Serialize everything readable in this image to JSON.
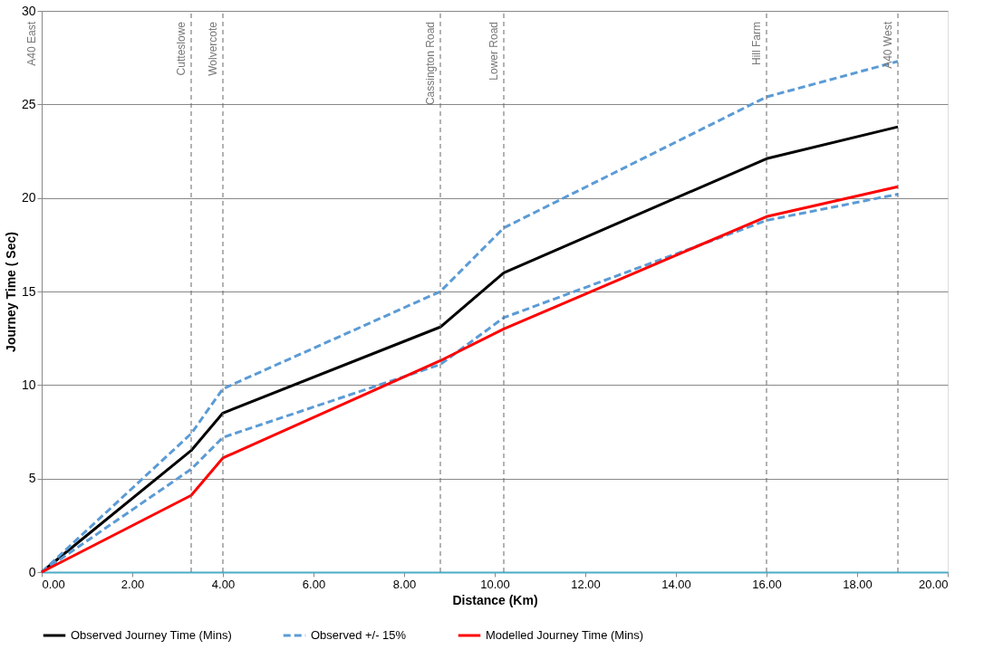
{
  "chart_data": {
    "type": "line",
    "xlabel": "Distance (Km)",
    "ylabel": "Journey Time ( Sec)",
    "xlim": [
      0,
      20
    ],
    "ylim": [
      0,
      30
    ],
    "xticks": [
      {
        "value": 0,
        "label": "0.00"
      },
      {
        "value": 2,
        "label": "2.00"
      },
      {
        "value": 4,
        "label": "4.00"
      },
      {
        "value": 6,
        "label": "6.00"
      },
      {
        "value": 8,
        "label": "8.00"
      },
      {
        "value": 10,
        "label": "10.00"
      },
      {
        "value": 12,
        "label": "12.00"
      },
      {
        "value": 14,
        "label": "14.00"
      },
      {
        "value": 16,
        "label": "16.00"
      },
      {
        "value": 18,
        "label": "18.00"
      },
      {
        "value": 20,
        "label": "20.00"
      }
    ],
    "yticks": [
      0,
      5,
      10,
      15,
      20,
      25,
      30
    ],
    "annotations": [
      "A40 East"
    ],
    "grid": "y",
    "legend": "bottom",
    "marker": "none",
    "x": [
      0,
      3.3,
      4.0,
      8.8,
      10.2,
      16.0,
      18.9
    ],
    "series": [
      {
        "name": "Observed Journey Time (Mins)",
        "color": "#000000",
        "line_style": "solid",
        "values": [
          0,
          6.5,
          8.5,
          13.1,
          16.0,
          22.1,
          23.8
        ]
      },
      {
        "name": "Observed +/- 15%",
        "color": "#5b9bd5",
        "line_style": "dashed",
        "values": [
          0,
          7.4,
          9.8,
          15.0,
          18.4,
          25.4,
          27.3
        ]
      },
      {
        "color": "#5b9bd5",
        "line_style": "dashed",
        "values": [
          0,
          5.5,
          7.2,
          11.1,
          13.6,
          18.8,
          20.2
        ]
      },
      {
        "name": "Modelled Journey Time (Mins)",
        "color": "#ff0000",
        "line_style": "solid",
        "values": [
          0,
          4.1,
          6.1,
          11.3,
          13.0,
          19.0,
          20.6
        ]
      }
    ],
    "ref_lines": [
      {
        "axis": "x",
        "value": 3.3,
        "label": "Cutteslowe",
        "line_style": "dashed"
      },
      {
        "axis": "x",
        "value": 4.0,
        "label": "Wolvercote",
        "line_style": "dashed"
      },
      {
        "axis": "x",
        "value": 8.8,
        "label": "Cassington Road",
        "line_style": "dashed"
      },
      {
        "axis": "x",
        "value": 10.2,
        "label": "Lower Road",
        "line_style": "dashed"
      },
      {
        "axis": "x",
        "value": 16.0,
        "label": "Hill Farm",
        "line_style": "dashed"
      },
      {
        "axis": "x",
        "value": 18.9,
        "label": "A40 West",
        "line_style": "dashed"
      }
    ]
  }
}
